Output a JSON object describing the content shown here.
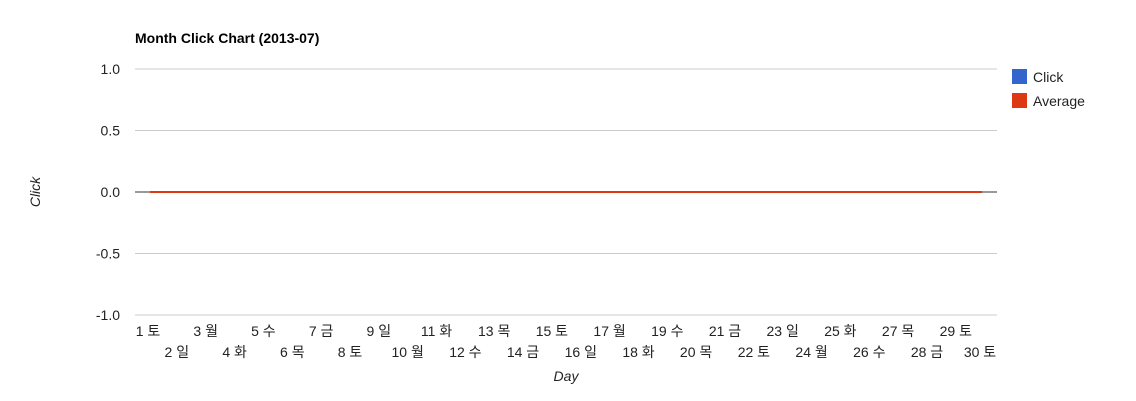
{
  "chart_data": {
    "type": "line",
    "title": "Month Click Chart (2013-07)",
    "xlabel": "Day",
    "ylabel": "Click",
    "categories": [
      "1 토",
      "2 일",
      "3 월",
      "4 화",
      "5 수",
      "6 목",
      "7 금",
      "8 토",
      "9 일",
      "10 월",
      "11 화",
      "12 수",
      "13 목",
      "14 금",
      "15 토",
      "16 일",
      "17 월",
      "18 화",
      "19 수",
      "20 목",
      "21 금",
      "22 토",
      "23 일",
      "24 월",
      "25 화",
      "26 수",
      "27 목",
      "28 금",
      "29 토",
      "30 토"
    ],
    "series": [
      {
        "name": "Click",
        "color": "#3366cc",
        "values": [
          0,
          0,
          0,
          0,
          0,
          0,
          0,
          0,
          0,
          0,
          0,
          0,
          0,
          0,
          0,
          0,
          0,
          0,
          0,
          0,
          0,
          0,
          0,
          0,
          0,
          0,
          0,
          0,
          0,
          0
        ]
      },
      {
        "name": "Average",
        "color": "#dc3912",
        "values": [
          0,
          0,
          0,
          0,
          0,
          0,
          0,
          0,
          0,
          0,
          0,
          0,
          0,
          0,
          0,
          0,
          0,
          0,
          0,
          0,
          0,
          0,
          0,
          0,
          0,
          0,
          0,
          0,
          0,
          0
        ]
      }
    ],
    "yticks": [
      "1.0",
      "0.5",
      "0.0",
      "-0.5",
      "-1.0"
    ],
    "ylim": [
      -1,
      1
    ],
    "grid": true,
    "legend_position": "right"
  }
}
